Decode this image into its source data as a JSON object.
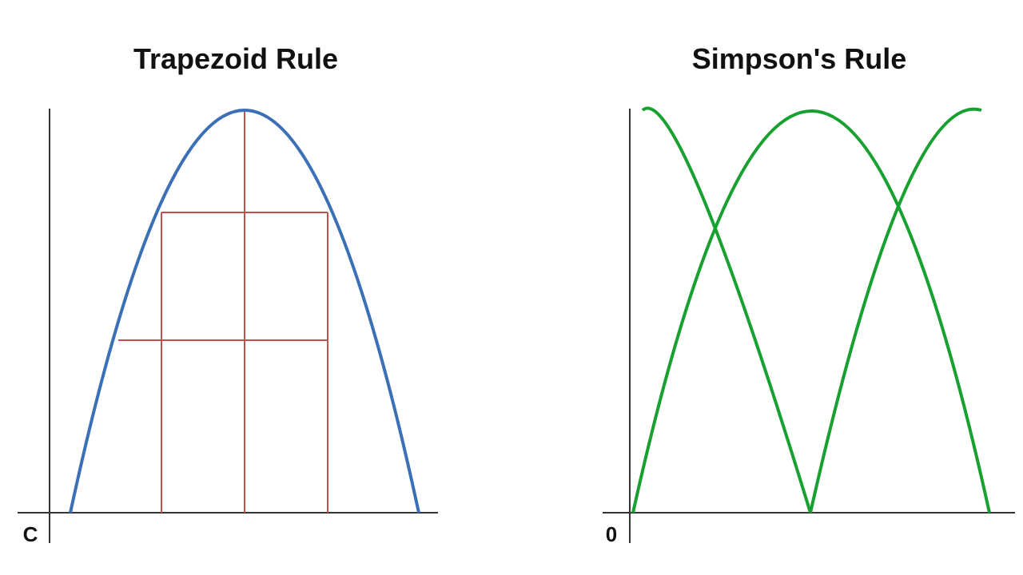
{
  "panels": {
    "trapezoid": {
      "title": "Trapezoid Rule",
      "origin_label": "C",
      "curve_color": "#3b6fb6",
      "grid_color": "#cc4c4c"
    },
    "simpson": {
      "title": "Simpson's Rule",
      "origin_label": "0",
      "curve_color": "#18a030"
    }
  },
  "axis_color": "#333333"
}
